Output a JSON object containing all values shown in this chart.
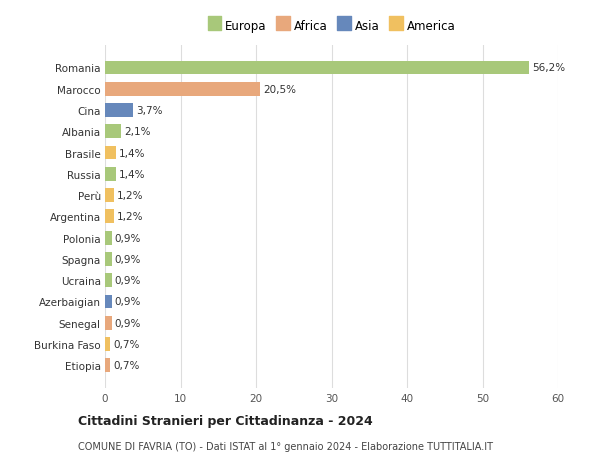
{
  "countries": [
    "Romania",
    "Marocco",
    "Cina",
    "Albania",
    "Brasile",
    "Russia",
    "Perù",
    "Argentina",
    "Polonia",
    "Spagna",
    "Ucraina",
    "Azerbaigian",
    "Senegal",
    "Burkina Faso",
    "Etiopia"
  ],
  "values": [
    56.2,
    20.5,
    3.7,
    2.1,
    1.4,
    1.4,
    1.2,
    1.2,
    0.9,
    0.9,
    0.9,
    0.9,
    0.9,
    0.7,
    0.7
  ],
  "labels": [
    "56,2%",
    "20,5%",
    "3,7%",
    "2,1%",
    "1,4%",
    "1,4%",
    "1,2%",
    "1,2%",
    "0,9%",
    "0,9%",
    "0,9%",
    "0,9%",
    "0,9%",
    "0,7%",
    "0,7%"
  ],
  "colors": [
    "#a8c87a",
    "#e8a87c",
    "#6688bb",
    "#a8c87a",
    "#f0c060",
    "#a8c87a",
    "#f0c060",
    "#f0c060",
    "#a8c87a",
    "#a8c87a",
    "#a8c87a",
    "#6688bb",
    "#e8a87c",
    "#f0c060",
    "#e8a87c"
  ],
  "legend_labels": [
    "Europa",
    "Africa",
    "Asia",
    "America"
  ],
  "legend_colors": [
    "#a8c87a",
    "#e8a87c",
    "#6688bb",
    "#f0c060"
  ],
  "title": "Cittadini Stranieri per Cittadinanza - 2024",
  "subtitle": "COMUNE DI FAVRIA (TO) - Dati ISTAT al 1° gennaio 2024 - Elaborazione TUTTITALIA.IT",
  "xlim": [
    0,
    60
  ],
  "xticks": [
    0,
    10,
    20,
    30,
    40,
    50,
    60
  ],
  "background_color": "#ffffff",
  "grid_color": "#dddddd"
}
